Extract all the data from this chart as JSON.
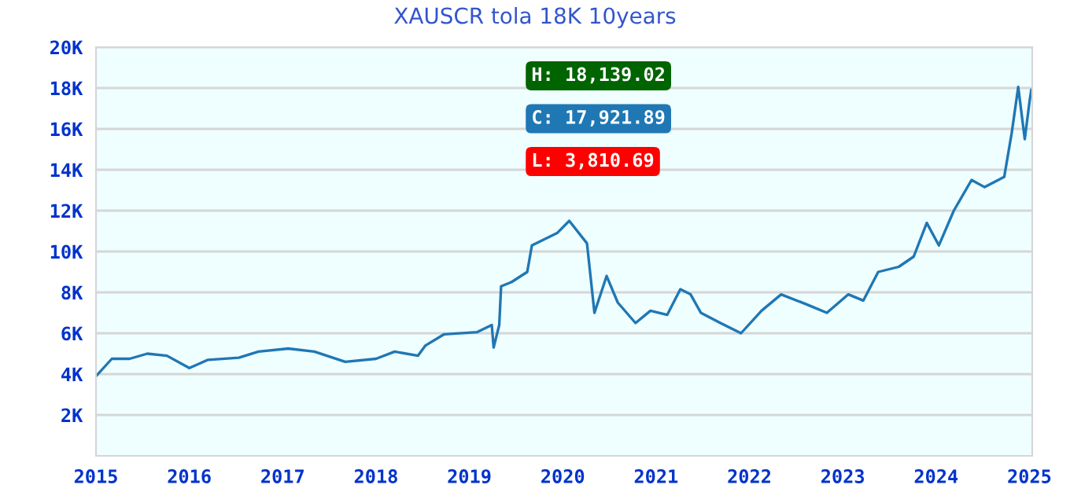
{
  "chart_data": {
    "type": "line",
    "title": "XAUSCR tola 18K 10years",
    "series": [
      {
        "color": "#1f77b4",
        "x": [
          2015.0,
          2015.17,
          2015.36,
          2015.55,
          2015.76,
          2016.0,
          2016.2,
          2016.53,
          2016.74,
          2017.06,
          2017.34,
          2017.67,
          2018.0,
          2018.2,
          2018.45,
          2018.53,
          2018.73,
          2019.08,
          2019.24,
          2019.26,
          2019.32,
          2019.34,
          2019.45,
          2019.62,
          2019.67,
          2019.94,
          2020.07,
          2020.26,
          2020.34,
          2020.47,
          2020.59,
          2020.78,
          2020.94,
          2021.12,
          2021.26,
          2021.37,
          2021.48,
          2021.69,
          2021.91,
          2022.13,
          2022.34,
          2022.62,
          2022.83,
          2023.06,
          2023.22,
          2023.38,
          2023.6,
          2023.76,
          2023.9,
          2024.03,
          2024.19,
          2024.38,
          2024.52,
          2024.73,
          2024.81,
          2024.88,
          2024.95,
          2025.0,
          2025.02
        ],
        "values": [
          3900,
          4750,
          4750,
          5000,
          4900,
          4300,
          4700,
          4800,
          5100,
          5250,
          5100,
          4600,
          4750,
          5100,
          4900,
          5400,
          5950,
          6050,
          6400,
          5300,
          6400,
          8300,
          8500,
          9000,
          10300,
          10900,
          11500,
          10400,
          7000,
          8800,
          7500,
          6500,
          7100,
          6900,
          8150,
          7900,
          7000,
          6500,
          6000,
          7100,
          7900,
          7400,
          7000,
          7900,
          7600,
          9000,
          9250,
          9750,
          11400,
          10300,
          12000,
          13500,
          13150,
          13650,
          15800,
          18050,
          15500,
          17300,
          17920
        ]
      }
    ],
    "xlim": [
      2015,
      2025.03
    ],
    "xticks": [
      2015,
      2016,
      2017,
      2018,
      2019,
      2020,
      2021,
      2022,
      2023,
      2024,
      2025
    ],
    "ylim": [
      0,
      20000
    ],
    "yticks": [
      {
        "value": 2000,
        "label": "2K"
      },
      {
        "value": 4000,
        "label": "4K"
      },
      {
        "value": 6000,
        "label": "6K"
      },
      {
        "value": 8000,
        "label": "8K"
      },
      {
        "value": 10000,
        "label": "10K"
      },
      {
        "value": 12000,
        "label": "12K"
      },
      {
        "value": 14000,
        "label": "14K"
      },
      {
        "value": 16000,
        "label": "16K"
      },
      {
        "value": 18000,
        "label": "18K"
      },
      {
        "value": 20000,
        "label": "20K"
      }
    ],
    "grid": "y",
    "annotations": [
      "H: 18,139.02",
      "C: 17,921.89",
      "L: 3,810.69"
    ]
  }
}
